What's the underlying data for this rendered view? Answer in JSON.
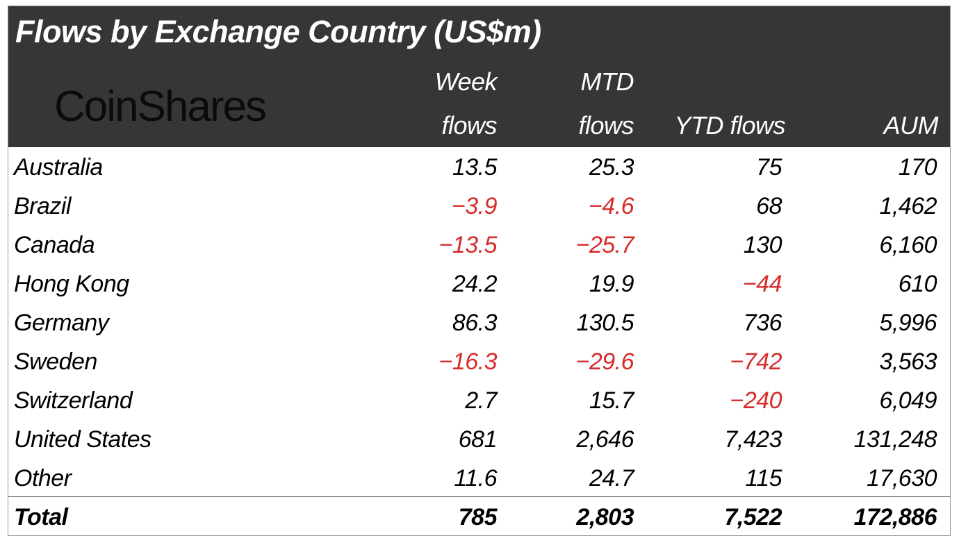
{
  "chart_data": {
    "type": "table",
    "title": "Flows by Exchange Country (US$m)",
    "logo": "CoinShares",
    "columns": [
      {
        "line1": "",
        "line2": ""
      },
      {
        "line1": "Week",
        "line2": "flows"
      },
      {
        "line1": "MTD",
        "line2": "flows"
      },
      {
        "line1": "",
        "line2": "YTD flows"
      },
      {
        "line1": "",
        "line2": "AUM"
      }
    ],
    "rows": [
      [
        "Australia",
        "13.5",
        "25.3",
        "75",
        "170"
      ],
      [
        "Brazil",
        "-3.9",
        "-4.6",
        "68",
        "1,462"
      ],
      [
        "Canada",
        "-13.5",
        "-25.7",
        "130",
        "6,160"
      ],
      [
        "Hong Kong",
        "24.2",
        "19.9",
        "-44",
        "610"
      ],
      [
        "Germany",
        "86.3",
        "130.5",
        "736",
        "5,996"
      ],
      [
        "Sweden",
        "-16.3",
        "-29.6",
        "-742",
        "3,563"
      ],
      [
        "Switzerland",
        "2.7",
        "15.7",
        "-240",
        "6,049"
      ],
      [
        "United States",
        "681",
        "2,646",
        "7,423",
        "131,248"
      ],
      [
        "Other",
        "11.6",
        "24.7",
        "115",
        "17,630"
      ]
    ],
    "total": [
      "Total",
      "785",
      "2,803",
      "7,522",
      "172,886"
    ],
    "colors": {
      "header_bg": "#363636",
      "negative": "#d62b2b",
      "text": "#1a1a1a"
    }
  }
}
